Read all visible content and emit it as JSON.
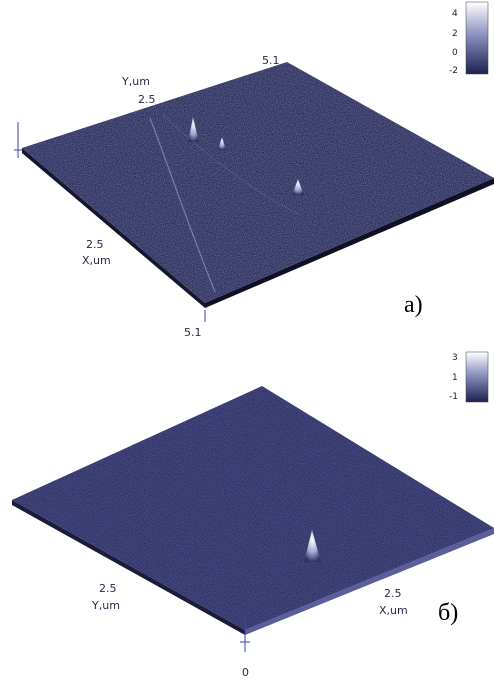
{
  "panels": [
    {
      "id": "a",
      "label": "a)",
      "axes": {
        "y_axis_name": "Y,um",
        "y_mid": "2.5",
        "y_end": "5.1",
        "x_axis_name": "X,um",
        "x_mid": "2.5",
        "x_end": "5.1"
      },
      "color_scale_ticks": [
        "4",
        "2",
        "0",
        "-2"
      ],
      "surface_color": "#2f3260",
      "peaks": 3
    },
    {
      "id": "b",
      "label": "б)",
      "axes": {
        "y_axis_name": "Y,um",
        "y_mid": "2.5",
        "x_axis_name": "X,um",
        "x_mid": "2.5",
        "origin": "0"
      },
      "color_scale_ticks": [
        "3",
        "1",
        "-1"
      ],
      "surface_color": "#30336a",
      "peaks": 1
    }
  ]
}
